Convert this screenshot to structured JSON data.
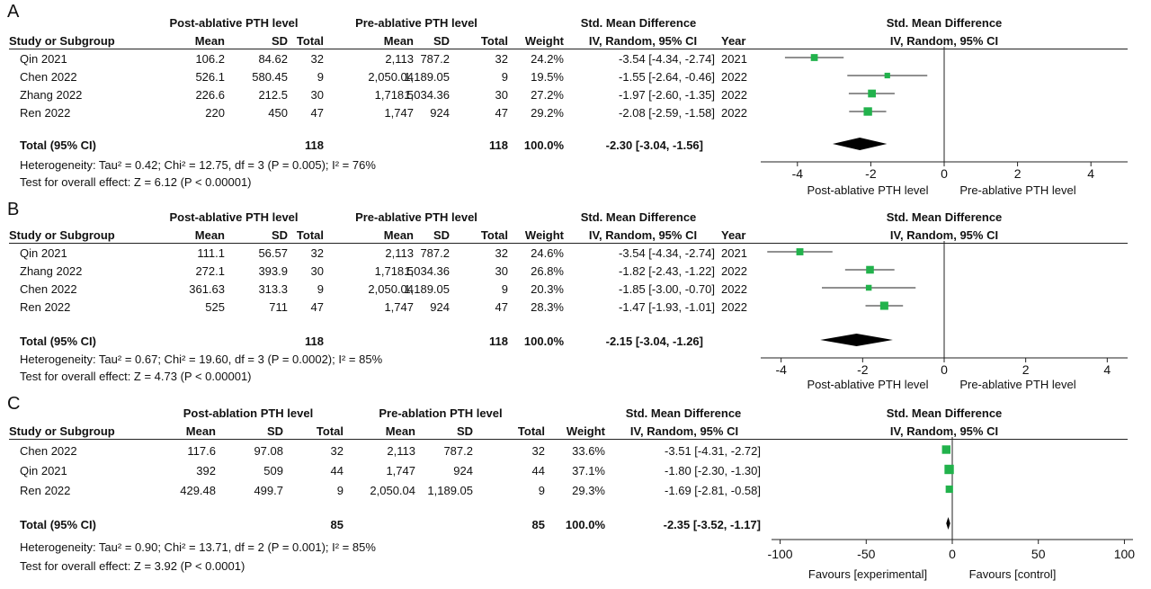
{
  "chart_data": [
    {
      "panel": "A",
      "type": "forest",
      "col_headers": {
        "group1": "Post-ablative PTH level",
        "group2": "Pre-ablative PTH level",
        "effect": "Std. Mean Difference",
        "effect_sub": "IV, Random, 95% CI",
        "plot_title": "Std. Mean Difference",
        "plot_sub": "IV, Random, 95% CI",
        "study": "Study or Subgroup",
        "mean": "Mean",
        "sd": "SD",
        "total": "Total",
        "weight": "Weight",
        "year": "Year"
      },
      "studies": [
        {
          "name": "Qin 2021",
          "m1": "106.2",
          "sd1": "84.62",
          "n1": "32",
          "m2": "2,113",
          "sd2": "787.2",
          "n2": "32",
          "weight": "24.2%",
          "ci_text": "-3.54 [-4.34, -2.74]",
          "year": "2021",
          "est": -3.54,
          "lo": -4.34,
          "hi": -2.74
        },
        {
          "name": "Chen 2022",
          "m1": "526.1",
          "sd1": "580.45",
          "n1": "9",
          "m2": "2,050.04",
          "sd2": "1,189.05",
          "n2": "9",
          "weight": "19.5%",
          "ci_text": "-1.55 [-2.64, -0.46]",
          "year": "2022",
          "est": -1.55,
          "lo": -2.64,
          "hi": -0.46
        },
        {
          "name": "Zhang 2022",
          "m1": "226.6",
          "sd1": "212.5",
          "n1": "30",
          "m2": "1,718.5",
          "sd2": "1,034.36",
          "n2": "30",
          "weight": "27.2%",
          "ci_text": "-1.97 [-2.60, -1.35]",
          "year": "2022",
          "est": -1.97,
          "lo": -2.6,
          "hi": -1.35
        },
        {
          "name": "Ren 2022",
          "m1": "220",
          "sd1": "450",
          "n1": "47",
          "m2": "1,747",
          "sd2": "924",
          "n2": "47",
          "weight": "29.2%",
          "ci_text": "-2.08 [-2.59, -1.58]",
          "year": "2022",
          "est": -2.08,
          "lo": -2.59,
          "hi": -1.58
        }
      ],
      "total": {
        "label": "Total (95% CI)",
        "n1": "118",
        "n2": "118",
        "weight": "100.0%",
        "ci_text": "-2.30 [-3.04, -1.56]",
        "est": -2.3,
        "lo": -3.04,
        "hi": -1.56
      },
      "heterogeneity": "Heterogeneity: Tau² = 0.42; Chi² = 12.75, df = 3 (P = 0.005); I² = 76%",
      "overall": "Test for overall effect: Z = 6.12 (P < 0.00001)",
      "axis": {
        "min": -5,
        "max": 5,
        "ticks": [
          -4,
          -2,
          0,
          2,
          4
        ],
        "tick_labels": [
          "-4",
          "-2",
          "0",
          "2",
          "4"
        ],
        "left_label": "Post-ablative PTH level",
        "right_label": "Pre-ablative PTH level"
      }
    },
    {
      "panel": "B",
      "type": "forest",
      "col_headers": {
        "group1": "Post-ablative PTH level",
        "group2": "Pre-ablative PTH level",
        "effect": "Std. Mean Difference",
        "effect_sub": "IV, Random, 95% CI",
        "plot_title": "Std. Mean Difference",
        "plot_sub": "IV, Random, 95% CI",
        "study": "Study or Subgroup",
        "mean": "Mean",
        "sd": "SD",
        "total": "Total",
        "weight": "Weight",
        "year": "Year"
      },
      "studies": [
        {
          "name": "Qin 2021",
          "m1": "111.1",
          "sd1": "56.57",
          "n1": "32",
          "m2": "2,113",
          "sd2": "787.2",
          "n2": "32",
          "weight": "24.6%",
          "ci_text": "-3.54 [-4.34, -2.74]",
          "year": "2021",
          "est": -3.54,
          "lo": -4.34,
          "hi": -2.74
        },
        {
          "name": "Zhang 2022",
          "m1": "272.1",
          "sd1": "393.9",
          "n1": "30",
          "m2": "1,718.5",
          "sd2": "1,034.36",
          "n2": "30",
          "weight": "26.8%",
          "ci_text": "-1.82 [-2.43, -1.22]",
          "year": "2022",
          "est": -1.82,
          "lo": -2.43,
          "hi": -1.22
        },
        {
          "name": "Chen 2022",
          "m1": "361.63",
          "sd1": "313.3",
          "n1": "9",
          "m2": "2,050.04",
          "sd2": "1,189.05",
          "n2": "9",
          "weight": "20.3%",
          "ci_text": "-1.85 [-3.00, -0.70]",
          "year": "2022",
          "est": -1.85,
          "lo": -3.0,
          "hi": -0.7
        },
        {
          "name": "Ren 2022",
          "m1": "525",
          "sd1": "711",
          "n1": "47",
          "m2": "1,747",
          "sd2": "924",
          "n2": "47",
          "weight": "28.3%",
          "ci_text": "-1.47 [-1.93, -1.01]",
          "year": "2022",
          "est": -1.47,
          "lo": -1.93,
          "hi": -1.01
        }
      ],
      "total": {
        "label": "Total (95% CI)",
        "n1": "118",
        "n2": "118",
        "weight": "100.0%",
        "ci_text": "-2.15 [-3.04, -1.26]",
        "est": -2.15,
        "lo": -3.04,
        "hi": -1.26
      },
      "heterogeneity": "Heterogeneity: Tau² = 0.67; Chi² = 19.60, df = 3 (P = 0.0002); I² = 85%",
      "overall": "Test for overall effect: Z = 4.73 (P < 0.00001)",
      "axis": {
        "min": -4.5,
        "max": 4.5,
        "ticks": [
          -4,
          -2,
          0,
          2,
          4
        ],
        "tick_labels": [
          "-4",
          "-2",
          "0",
          "2",
          "4"
        ],
        "left_label": "Post-ablative PTH level",
        "right_label": "Pre-ablative PTH level"
      }
    },
    {
      "panel": "C",
      "type": "forest",
      "col_headers": {
        "group1": "Post-ablation PTH level",
        "group2": "Pre-ablation PTH level",
        "effect": "Std. Mean Difference",
        "effect_sub": "IV, Random, 95% CI",
        "plot_title": "Std. Mean Difference",
        "plot_sub": "IV, Random, 95% CI",
        "study": "Study or Subgroup",
        "mean": "Mean",
        "sd": "SD",
        "total": "Total",
        "weight": "Weight",
        "year": ""
      },
      "studies": [
        {
          "name": "Chen 2022",
          "m1": "117.6",
          "sd1": "97.08",
          "n1": "32",
          "m2": "2,113",
          "sd2": "787.2",
          "n2": "32",
          "weight": "33.6%",
          "ci_text": "-3.51 [-4.31, -2.72]",
          "year": "",
          "est": -3.51,
          "lo": -4.31,
          "hi": -2.72
        },
        {
          "name": "Qin 2021",
          "m1": "392",
          "sd1": "509",
          "n1": "44",
          "m2": "1,747",
          "sd2": "924",
          "n2": "44",
          "weight": "37.1%",
          "ci_text": "-1.80 [-2.30, -1.30]",
          "year": "",
          "est": -1.8,
          "lo": -2.3,
          "hi": -1.3
        },
        {
          "name": "Ren 2022",
          "m1": "429.48",
          "sd1": "499.7",
          "n1": "9",
          "m2": "2,050.04",
          "sd2": "1,189.05",
          "n2": "9",
          "weight": "29.3%",
          "ci_text": "-1.69 [-2.81, -0.58]",
          "year": "",
          "est": -1.69,
          "lo": -2.81,
          "hi": -0.58
        }
      ],
      "total": {
        "label": "Total (95% CI)",
        "n1": "85",
        "n2": "85",
        "weight": "100.0%",
        "ci_text": "-2.35 [-3.52, -1.17]",
        "est": -2.35,
        "lo": -3.52,
        "hi": -1.17
      },
      "heterogeneity": "Heterogeneity: Tau² = 0.90; Chi² = 13.71, df = 2 (P = 0.001); I² = 85%",
      "overall": "Test for overall effect: Z = 3.92 (P < 0.0001)",
      "axis": {
        "min": -105,
        "max": 105,
        "ticks": [
          -100,
          -50,
          0,
          50,
          100
        ],
        "tick_labels": [
          "-100",
          "-50",
          "0",
          "50",
          "100"
        ],
        "left_label": "Favours [experimental]",
        "right_label": "Favours [control]"
      }
    }
  ],
  "colors": {
    "marker": "#22b24c",
    "diamond": "#000000",
    "line": "#222222"
  }
}
